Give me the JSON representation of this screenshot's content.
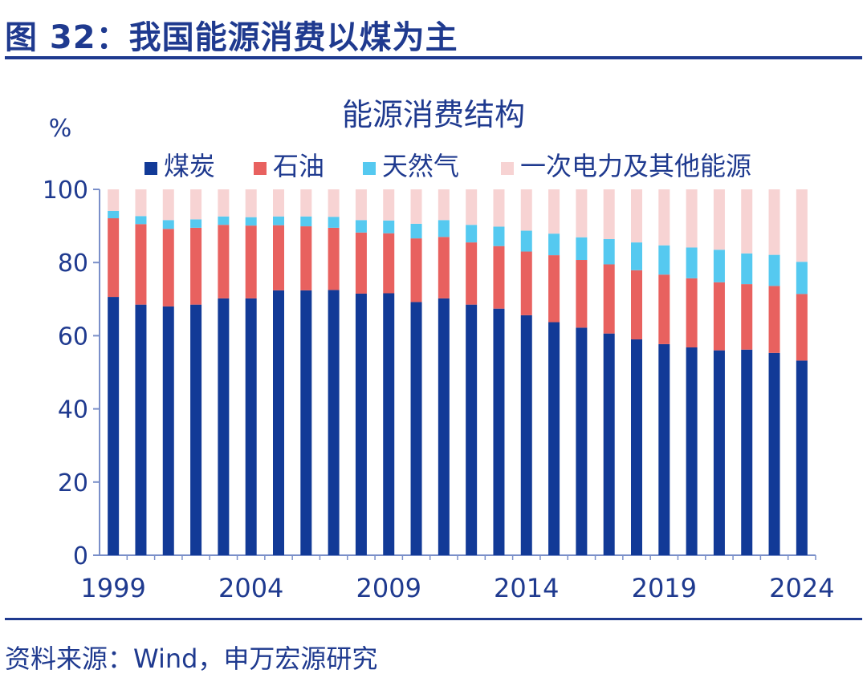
{
  "figure": {
    "title": "图 32：我国能源消费以煤为主",
    "source": "资料来源：Wind，申万宏源研究"
  },
  "colors": {
    "coal": "#123a97",
    "oil": "#e8615f",
    "gas": "#55c9f0",
    "other": "#f7d3d3",
    "axis": "#7a8fc9",
    "text": "#1f3a8f"
  },
  "chart_data": {
    "type": "bar",
    "stacked": true,
    "title": "能源消费结构",
    "ylabel": "%",
    "xlabel": "",
    "ylim": [
      0,
      100
    ],
    "yticks": [
      0,
      20,
      40,
      60,
      80,
      100
    ],
    "xtick_labels": [
      "1999",
      "2004",
      "2009",
      "2014",
      "2019",
      "2024"
    ],
    "categories": [
      "1999",
      "2000",
      "2001",
      "2002",
      "2003",
      "2004",
      "2005",
      "2006",
      "2007",
      "2008",
      "2009",
      "2010",
      "2011",
      "2012",
      "2013",
      "2014",
      "2015",
      "2016",
      "2017",
      "2018",
      "2019",
      "2020",
      "2021",
      "2022",
      "2023",
      "2024"
    ],
    "series": [
      {
        "name": "煤炭",
        "key": "coal",
        "values": [
          70.6,
          68.5,
          68.0,
          68.5,
          70.2,
          70.2,
          72.4,
          72.4,
          72.5,
          71.5,
          71.6,
          69.2,
          70.2,
          68.5,
          67.4,
          65.6,
          63.7,
          62.2,
          60.6,
          59.0,
          57.7,
          56.8,
          56.0,
          56.2,
          55.3,
          53.2
        ]
      },
      {
        "name": "石油",
        "key": "oil",
        "values": [
          21.5,
          22.0,
          21.2,
          21.0,
          20.1,
          19.9,
          17.8,
          17.5,
          17.0,
          16.7,
          16.4,
          17.4,
          16.8,
          17.0,
          17.1,
          17.4,
          18.3,
          18.5,
          18.9,
          18.9,
          19.0,
          18.9,
          18.6,
          17.9,
          18.3,
          18.2
        ]
      },
      {
        "name": "天然气",
        "key": "gas",
        "values": [
          2.0,
          2.2,
          2.4,
          2.3,
          2.3,
          2.3,
          2.4,
          2.7,
          3.0,
          3.4,
          3.5,
          4.0,
          4.6,
          4.8,
          5.3,
          5.7,
          5.9,
          6.2,
          6.9,
          7.6,
          8.0,
          8.4,
          8.9,
          8.4,
          8.5,
          8.8
        ]
      },
      {
        "name": "一次电力及其他能源",
        "key": "other",
        "values": [
          5.9,
          7.3,
          8.4,
          8.2,
          7.4,
          7.6,
          7.4,
          7.4,
          7.5,
          8.4,
          8.5,
          9.4,
          8.4,
          9.7,
          10.2,
          11.3,
          12.1,
          13.1,
          13.6,
          14.5,
          15.3,
          15.9,
          16.5,
          17.5,
          17.9,
          19.8
        ]
      }
    ]
  }
}
